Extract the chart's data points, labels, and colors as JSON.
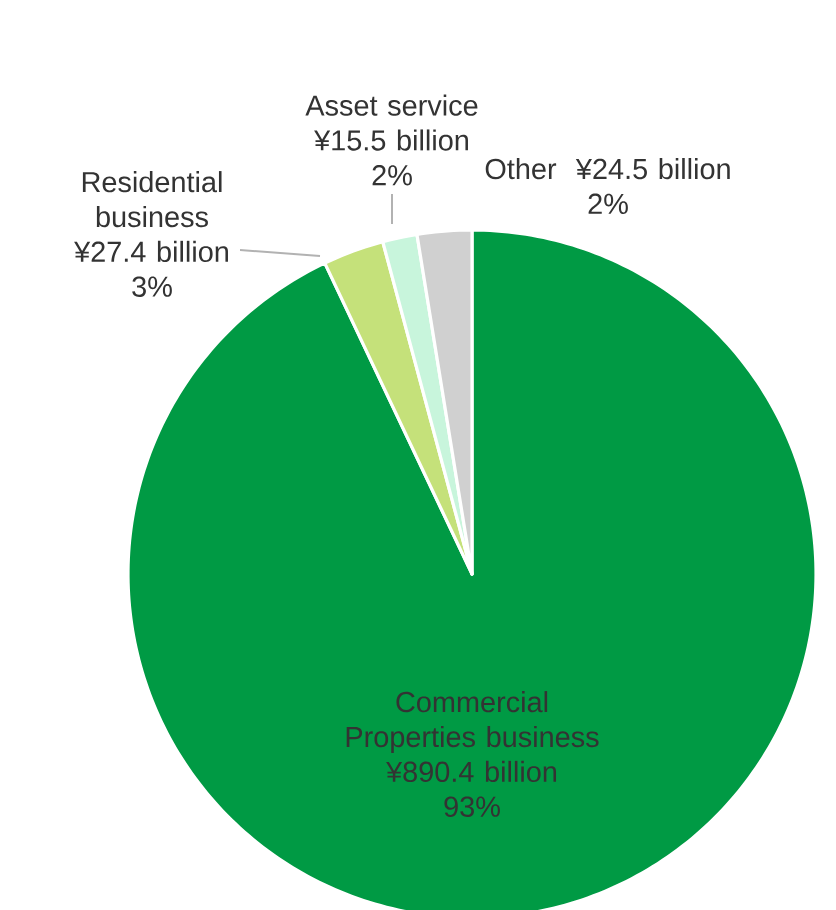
{
  "chart_data": {
    "type": "pie",
    "categories": [
      "Commercial Properties business",
      "Residential business",
      "Asset service",
      "Other"
    ],
    "values": [
      890.4,
      27.4,
      15.5,
      24.5
    ],
    "value_labels": [
      "¥890.4 billion",
      "¥27.4 billion",
      "¥15.5 billion",
      "¥24.5 billion"
    ],
    "annotations": [
      "93%",
      "3%",
      "2%",
      "2%"
    ],
    "colors": [
      "#009a44",
      "#c5e17a",
      "#c8f5dc",
      "#d0d0d0"
    ]
  }
}
